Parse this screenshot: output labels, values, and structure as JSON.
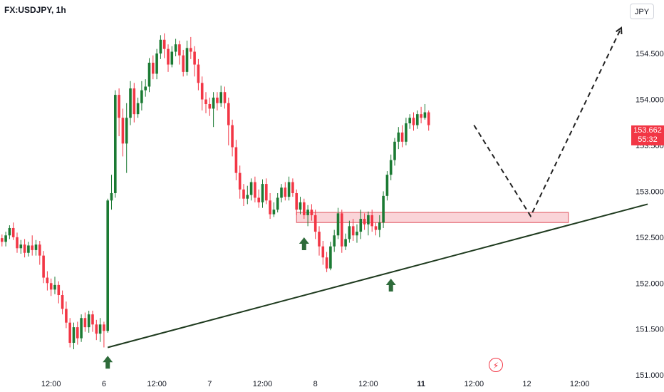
{
  "header": {
    "symbol": "FX:USDJPY, 1h",
    "currency": "JPY"
  },
  "last_price": {
    "value": "153.662",
    "countdown": "55:32"
  },
  "colors": {
    "up": "#1b7a33",
    "down": "#f23645",
    "trendline": "#1e3a1e",
    "zone_fill": "#f8c6cb",
    "zone_border": "#e0525e",
    "arrow": "#2e6b3a",
    "projection": "#222222"
  },
  "icons": {
    "logo": "lightning-logo-icon",
    "arrow": "up-arrow-icon"
  },
  "chart_data": {
    "type": "candlestick",
    "y_axis": {
      "ticks": [
        151.0,
        151.5,
        152.0,
        152.5,
        153.0,
        153.5,
        154.0,
        154.5
      ],
      "tick_labels": [
        "151.000",
        "151.500",
        "152.000",
        "152.500",
        "153.000",
        "153.500",
        "154.000",
        "154.500"
      ],
      "range": [
        150.97,
        154.85
      ]
    },
    "x_axis": {
      "ticks": [
        {
          "bar": 14,
          "label": "12:00",
          "major": false
        },
        {
          "bar": 28,
          "label": "6",
          "major": false
        },
        {
          "bar": 42,
          "label": "12:00",
          "major": false
        },
        {
          "bar": 56,
          "label": "7",
          "major": false
        },
        {
          "bar": 70,
          "label": "12:00",
          "major": false
        },
        {
          "bar": 84,
          "label": "8",
          "major": false
        },
        {
          "bar": 98,
          "label": "12:00",
          "major": false
        },
        {
          "bar": 112,
          "label": "11",
          "major": true
        },
        {
          "bar": 126,
          "label": "12:00",
          "major": false
        },
        {
          "bar": 140,
          "label": "12",
          "major": false
        },
        {
          "bar": 154,
          "label": "12:00",
          "major": false
        }
      ]
    },
    "candles": [
      [
        152.53,
        152.49,
        152.56,
        152.42
      ],
      [
        152.49,
        152.45,
        152.53,
        152.4
      ],
      [
        152.45,
        152.52,
        152.56,
        152.4
      ],
      [
        152.52,
        152.6,
        152.63,
        152.48
      ],
      [
        152.6,
        152.5,
        152.66,
        152.47
      ],
      [
        152.5,
        152.38,
        152.55,
        152.33
      ],
      [
        152.38,
        152.42,
        152.47,
        152.32
      ],
      [
        152.42,
        152.33,
        152.48,
        152.28
      ],
      [
        152.33,
        152.41,
        152.45,
        152.29
      ],
      [
        152.41,
        152.36,
        152.52,
        152.3
      ],
      [
        152.36,
        152.42,
        152.47,
        152.3
      ],
      [
        152.42,
        152.3,
        152.46,
        152.2
      ],
      [
        152.3,
        152.06,
        152.35,
        152.0
      ],
      [
        152.06,
        152.0,
        152.13,
        151.92
      ],
      [
        152.0,
        151.93,
        152.05,
        151.86
      ],
      [
        151.93,
        151.98,
        152.07,
        151.88
      ],
      [
        151.98,
        151.87,
        152.02,
        151.78
      ],
      [
        151.87,
        151.72,
        151.92,
        151.66
      ],
      [
        151.72,
        151.57,
        151.8,
        151.51
      ],
      [
        151.57,
        151.35,
        151.62,
        151.3
      ],
      [
        151.35,
        151.52,
        151.57,
        151.28
      ],
      [
        151.52,
        151.4,
        151.58,
        151.33
      ],
      [
        151.4,
        151.62,
        151.66,
        151.36
      ],
      [
        151.62,
        151.52,
        151.68,
        151.47
      ],
      [
        151.52,
        151.66,
        151.7,
        151.46
      ],
      [
        151.66,
        151.55,
        151.7,
        151.47
      ],
      [
        151.55,
        151.45,
        151.6,
        151.38
      ],
      [
        151.45,
        151.55,
        151.62,
        151.36
      ],
      [
        151.55,
        151.48,
        151.58,
        151.3
      ],
      [
        151.48,
        152.9,
        152.92,
        151.46
      ],
      [
        152.9,
        152.98,
        153.18,
        152.8
      ],
      [
        152.98,
        154.05,
        154.1,
        152.93
      ],
      [
        154.05,
        153.8,
        154.12,
        153.6
      ],
      [
        153.8,
        153.52,
        153.9,
        153.38
      ],
      [
        153.52,
        153.8,
        153.96,
        153.2
      ],
      [
        153.8,
        154.12,
        154.2,
        153.72
      ],
      [
        154.12,
        153.84,
        154.18,
        153.75
      ],
      [
        153.84,
        153.96,
        154.02,
        153.8
      ],
      [
        153.96,
        154.1,
        154.2,
        153.88
      ],
      [
        154.1,
        154.14,
        154.22,
        154.03
      ],
      [
        154.14,
        154.4,
        154.45,
        154.08
      ],
      [
        154.4,
        154.28,
        154.48,
        154.22
      ],
      [
        154.28,
        154.5,
        154.55,
        154.22
      ],
      [
        154.5,
        154.65,
        154.7,
        154.44
      ],
      [
        154.65,
        154.55,
        154.72,
        154.45
      ],
      [
        154.55,
        154.38,
        154.6,
        154.3
      ],
      [
        154.38,
        154.52,
        154.58,
        154.35
      ],
      [
        154.52,
        154.6,
        154.66,
        154.47
      ],
      [
        154.6,
        154.48,
        154.64,
        154.38
      ],
      [
        154.48,
        154.3,
        154.54,
        154.25
      ],
      [
        154.3,
        154.56,
        154.64,
        154.26
      ],
      [
        154.56,
        154.52,
        154.68,
        154.44
      ],
      [
        154.52,
        154.38,
        154.58,
        154.25
      ],
      [
        154.38,
        154.18,
        154.44,
        154.1
      ],
      [
        154.18,
        154.0,
        154.25,
        153.88
      ],
      [
        154.0,
        153.95,
        154.08,
        153.85
      ],
      [
        153.95,
        153.9,
        154.02,
        153.82
      ],
      [
        153.9,
        154.02,
        154.08,
        153.7
      ],
      [
        154.02,
        153.96,
        154.08,
        153.88
      ],
      [
        153.96,
        154.08,
        154.15,
        153.92
      ],
      [
        154.08,
        153.96,
        154.14,
        153.9
      ],
      [
        153.96,
        153.72,
        154.02,
        153.5
      ],
      [
        153.72,
        153.48,
        153.78,
        153.38
      ],
      [
        153.48,
        153.2,
        153.56,
        153.12
      ],
      [
        153.2,
        153.02,
        153.28,
        152.92
      ],
      [
        153.02,
        152.92,
        153.08,
        152.84
      ],
      [
        152.92,
        152.96,
        153.06,
        152.86
      ],
      [
        152.96,
        153.1,
        153.14,
        152.9
      ],
      [
        153.1,
        152.93,
        153.16,
        152.88
      ],
      [
        152.93,
        152.88,
        153.02,
        152.82
      ],
      [
        152.88,
        153.08,
        153.13,
        152.82
      ],
      [
        153.08,
        152.9,
        153.14,
        152.86
      ],
      [
        152.9,
        152.75,
        152.98,
        152.7
      ],
      [
        152.75,
        152.8,
        152.88,
        152.72
      ],
      [
        152.8,
        152.93,
        152.98,
        152.77
      ],
      [
        152.93,
        153.04,
        153.08,
        152.88
      ],
      [
        153.04,
        152.94,
        153.1,
        152.9
      ],
      [
        152.94,
        153.1,
        153.16,
        152.9
      ],
      [
        153.1,
        152.98,
        153.14,
        152.94
      ],
      [
        152.98,
        152.8,
        153.02,
        152.74
      ],
      [
        152.8,
        152.88,
        152.94,
        152.75
      ],
      [
        152.88,
        152.74,
        152.92,
        152.7
      ],
      [
        152.74,
        152.8,
        152.85,
        152.62
      ],
      [
        152.8,
        152.74,
        152.86,
        152.68
      ],
      [
        152.74,
        152.56,
        152.8,
        152.48
      ],
      [
        152.56,
        152.4,
        152.62,
        152.3
      ],
      [
        152.4,
        152.28,
        152.46,
        152.2
      ],
      [
        152.28,
        152.16,
        152.34,
        152.12
      ],
      [
        152.16,
        152.4,
        152.45,
        152.14
      ],
      [
        152.4,
        152.52,
        152.58,
        152.34
      ],
      [
        152.52,
        152.76,
        152.82,
        152.48
      ],
      [
        152.76,
        152.4,
        152.8,
        152.33
      ],
      [
        152.4,
        152.48,
        152.54,
        152.36
      ],
      [
        152.48,
        152.62,
        152.68,
        152.44
      ],
      [
        152.62,
        152.52,
        152.7,
        152.46
      ],
      [
        152.52,
        152.56,
        152.64,
        152.44
      ],
      [
        152.56,
        152.7,
        152.8,
        152.48
      ],
      [
        152.7,
        152.64,
        152.76,
        152.58
      ],
      [
        152.64,
        152.74,
        152.78,
        152.52
      ],
      [
        152.74,
        152.62,
        152.8,
        152.56
      ],
      [
        152.62,
        152.58,
        152.66,
        152.52
      ],
      [
        152.58,
        152.66,
        152.74,
        152.5
      ],
      [
        152.66,
        152.95,
        153.0,
        152.6
      ],
      [
        152.95,
        153.18,
        153.22,
        152.9
      ],
      [
        153.18,
        153.34,
        153.4,
        153.12
      ],
      [
        153.34,
        153.54,
        153.58,
        153.28
      ],
      [
        153.54,
        153.64,
        153.7,
        153.46
      ],
      [
        153.64,
        153.54,
        153.72,
        153.48
      ],
      [
        153.54,
        153.74,
        153.8,
        153.5
      ],
      [
        153.74,
        153.8,
        153.84,
        153.68
      ],
      [
        153.8,
        153.72,
        153.86,
        153.66
      ],
      [
        153.72,
        153.84,
        153.88,
        153.68
      ],
      [
        153.84,
        153.8,
        153.92,
        153.74
      ],
      [
        153.8,
        153.86,
        153.95,
        153.78
      ],
      [
        153.86,
        153.72,
        153.88,
        153.66
      ]
    ],
    "support_zone": {
      "top": 152.77,
      "bottom": 152.66,
      "from_bar": 79,
      "to_bar": 151
    },
    "trendline": {
      "from": {
        "bar": 29,
        "price": 151.3
      },
      "to": {
        "bar": 172,
        "price": 152.86
      }
    },
    "projection": [
      {
        "bar": 126,
        "price": 153.72
      },
      {
        "bar": 141,
        "price": 152.73
      },
      {
        "bar": 165,
        "price": 154.78
      }
    ],
    "arrows": [
      {
        "bar": 29,
        "price": 151.24
      },
      {
        "bar": 81,
        "price": 152.53
      },
      {
        "bar": 104,
        "price": 152.08
      }
    ]
  }
}
